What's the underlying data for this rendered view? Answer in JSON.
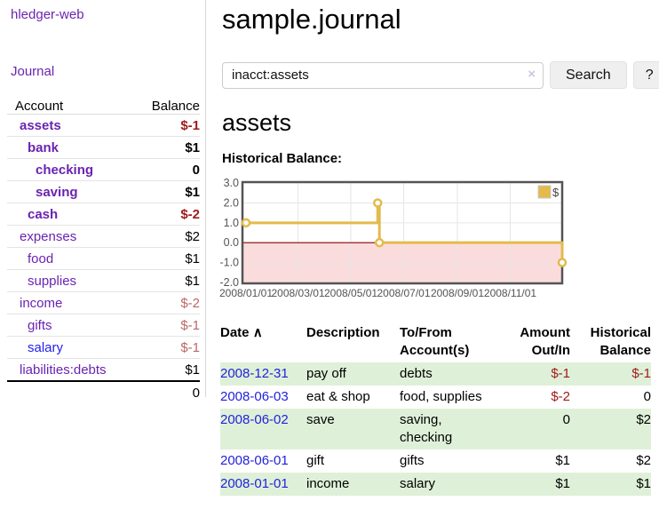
{
  "app": {
    "title": "hledger-web"
  },
  "colors": {
    "link_visited": "#6a23b1",
    "link_unvisited": "#2222ee",
    "negative_strong": "#a01a1a",
    "negative_soft": "#bb6666",
    "register_stripe_green": "#dff0d8",
    "chart_line_gold": "#e3ba4c",
    "chart_negative_fill": "#fbdcdc",
    "chart_zero_line": "#8b0000",
    "chart_axis_gray": "#545454"
  },
  "sidebar": {
    "journal_label": "Journal",
    "account_header": "Account",
    "balance_header": "Balance",
    "rows": [
      {
        "label": "assets",
        "balance": "$-1",
        "depth": 0,
        "bold": true,
        "balance_style": "neg-strong",
        "link": "visited"
      },
      {
        "label": "bank",
        "balance": "$1",
        "depth": 1,
        "bold": true,
        "balance_style": "pos-strong",
        "link": "visited"
      },
      {
        "label": "checking",
        "balance": "0",
        "depth": 2,
        "bold": true,
        "balance_style": "pos-strong",
        "link": "visited"
      },
      {
        "label": "saving",
        "balance": "$1",
        "depth": 2,
        "bold": true,
        "balance_style": "pos-strong",
        "link": "visited"
      },
      {
        "label": "cash",
        "balance": "$-2",
        "depth": 1,
        "bold": true,
        "balance_style": "neg-strong",
        "link": "visited"
      },
      {
        "label": "expenses",
        "balance": "$2",
        "depth": 0,
        "bold": false,
        "balance_style": "pos",
        "link": "visited"
      },
      {
        "label": "food",
        "balance": "$1",
        "depth": 1,
        "bold": false,
        "balance_style": "pos",
        "link": "visited"
      },
      {
        "label": "supplies",
        "balance": "$1",
        "depth": 1,
        "bold": false,
        "balance_style": "pos",
        "link": "visited"
      },
      {
        "label": "income",
        "balance": "$-2",
        "depth": 0,
        "bold": false,
        "balance_style": "neg-soft",
        "link": "visited"
      },
      {
        "label": "gifts",
        "balance": "$-1",
        "depth": 1,
        "bold": false,
        "balance_style": "neg-soft",
        "link": "visited"
      },
      {
        "label": "salary",
        "balance": "$-1",
        "depth": 1,
        "bold": false,
        "balance_style": "neg-soft",
        "link": "unvisited"
      },
      {
        "label": "liabilities:debts",
        "balance": "$1",
        "depth": 0,
        "bold": false,
        "balance_style": "pos",
        "link": "visited"
      }
    ],
    "total": "0"
  },
  "main": {
    "title": "sample.journal",
    "search": {
      "value": "inacct:assets",
      "clear_icon": "×",
      "button_label": "Search",
      "help_label": "?"
    },
    "account_heading": "assets",
    "chart_heading": "Historical Balance:"
  },
  "chart_data": {
    "type": "line",
    "step": true,
    "title": "Historical Balance:",
    "ylim": [
      -2.0,
      3.0
    ],
    "y_tick_labels": [
      "3.0",
      "2.0",
      "1.0",
      "0.0",
      "-1.0",
      "-2.0"
    ],
    "y_ticks": [
      3,
      2,
      1,
      0,
      -1,
      -2
    ],
    "x_tick_labels": [
      "2008/01/01",
      "2008/03/01",
      "2008/05/01",
      "2008/07/01",
      "2008/09/01",
      "2008/11/01"
    ],
    "x_tick_dates": [
      "2008-01-01",
      "2008-03-01",
      "2008-05-01",
      "2008-07-01",
      "2008-09-01",
      "2008-11-01"
    ],
    "x_range": [
      "2008-01-01",
      "2008-12-31"
    ],
    "grid": true,
    "legend_position": "top-right",
    "series": [
      {
        "name": "$",
        "points": [
          [
            "2008-01-01",
            1
          ],
          [
            "2008-06-01",
            2
          ],
          [
            "2008-06-03",
            0
          ],
          [
            "2008-12-31",
            -1
          ]
        ]
      }
    ]
  },
  "register": {
    "headers": {
      "date": "Date",
      "sort_icon": "∧",
      "description": "Description",
      "accounts": "To/From Account(s)",
      "amount": "Amount Out/In",
      "balance": "Historical Balance"
    },
    "rows": [
      {
        "date": "2008-12-31",
        "description": "pay off",
        "accounts": "debts",
        "amount": "$-1",
        "balance": "$-1",
        "amount_neg": true,
        "balance_neg": true,
        "striped": true
      },
      {
        "date": "2008-06-03",
        "description": "eat & shop",
        "accounts": "food, supplies",
        "amount": "$-2",
        "balance": "0",
        "amount_neg": true,
        "balance_neg": false,
        "striped": false
      },
      {
        "date": "2008-06-02",
        "description": "save",
        "accounts": "saving, checking",
        "amount": "0",
        "balance": "$2",
        "amount_neg": false,
        "balance_neg": false,
        "striped": true
      },
      {
        "date": "2008-06-01",
        "description": "gift",
        "accounts": "gifts",
        "amount": "$1",
        "balance": "$2",
        "amount_neg": false,
        "balance_neg": false,
        "striped": false
      },
      {
        "date": "2008-01-01",
        "description": "income",
        "accounts": "salary",
        "amount": "$1",
        "balance": "$1",
        "amount_neg": false,
        "balance_neg": false,
        "striped": true
      }
    ]
  }
}
